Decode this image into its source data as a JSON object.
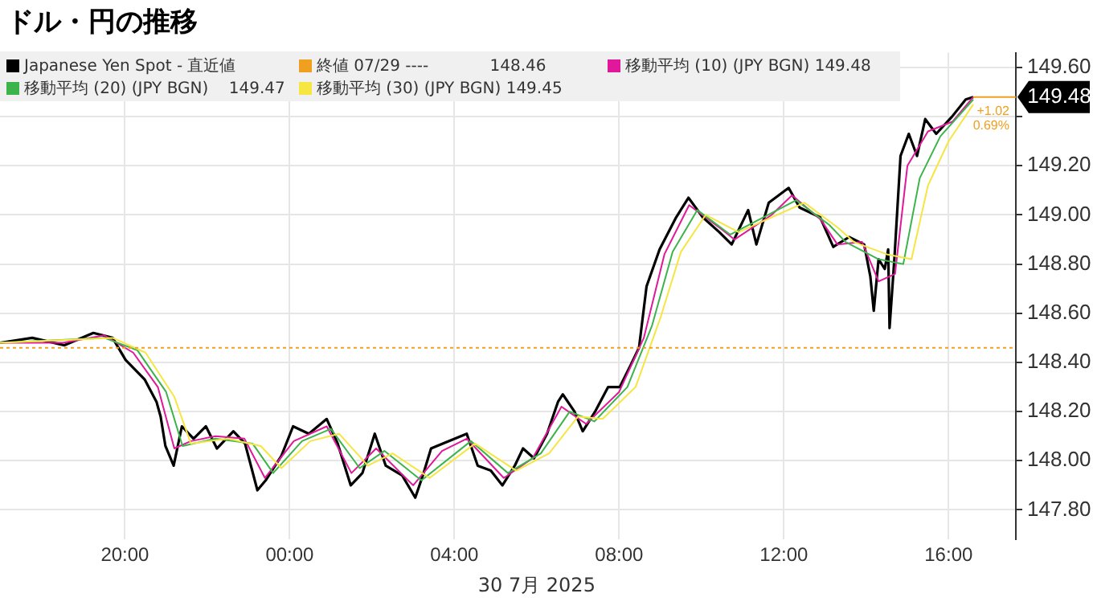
{
  "chart_data": {
    "type": "line",
    "title": "ドル・円の推移",
    "xlabel": "30 7月 2025",
    "xlim": [
      "2025-07-29T16:58",
      "2025-07-30T17:38"
    ],
    "xticks": [
      {
        "value": "2025-07-29T20:00",
        "label": "20:00"
      },
      {
        "value": "2025-07-30T00:00",
        "label": "00:00"
      },
      {
        "value": "2025-07-30T04:00",
        "label": "04:00"
      },
      {
        "value": "2025-07-30T08:00",
        "label": "08:00"
      },
      {
        "value": "2025-07-30T12:00",
        "label": "12:00"
      },
      {
        "value": "2025-07-30T16:00",
        "label": "16:00"
      }
    ],
    "ylim": [
      147.68,
      149.66
    ],
    "yticks": [
      {
        "value": 147.8,
        "label": "147.80"
      },
      {
        "value": 148,
        "label": "148.00"
      },
      {
        "value": 148.2,
        "label": "148.20"
      },
      {
        "value": 148.4,
        "label": "148.40"
      },
      {
        "value": 148.6,
        "label": "148.60"
      },
      {
        "value": 148.8,
        "label": "148.80"
      },
      {
        "value": 149,
        "label": "149.00"
      },
      {
        "value": 149.2,
        "label": "149.20"
      },
      {
        "value": 149.4,
        "label": null
      },
      {
        "value": 149.6,
        "label": "149.60"
      }
    ],
    "grid": true,
    "legend": "top left",
    "marker": "none",
    "series": [
      {
        "name": "移動平均 (30) (JPY BGN) 149.45",
        "color": "#f5e642",
        "x": [
          "2025-07-29T16:58",
          "2025-07-29T19:42",
          "2025-07-29T20:30",
          "2025-07-29T21:12",
          "2025-07-29T21:36",
          "2025-07-29T22:30",
          "2025-07-29T23:18",
          "2025-07-29T23:48",
          "2025-07-30T00:30",
          "2025-07-30T01:12",
          "2025-07-30T01:54",
          "2025-07-30T02:30",
          "2025-07-30T03:24",
          "2025-07-30T04:30",
          "2025-07-30T05:30",
          "2025-07-30T06:18",
          "2025-07-30T07:00",
          "2025-07-30T07:36",
          "2025-07-30T08:24",
          "2025-07-30T09:00",
          "2025-07-30T09:30",
          "2025-07-30T10:06",
          "2025-07-30T10:54",
          "2025-07-30T12:30",
          "2025-07-30T13:18",
          "2025-07-30T13:42",
          "2025-07-30T14:30",
          "2025-07-30T15:06",
          "2025-07-30T15:30",
          "2025-07-30T16:00",
          "2025-07-30T16:36"
        ],
        "values": [
          148.48,
          148.5,
          148.44,
          148.26,
          148.07,
          148.09,
          148.06,
          147.97,
          148.08,
          148.11,
          147.98,
          148.03,
          147.93,
          148.07,
          147.96,
          148.03,
          148.18,
          148.17,
          148.3,
          148.58,
          148.85,
          149.0,
          148.93,
          149.05,
          148.95,
          148.89,
          148.84,
          148.82,
          149.12,
          149.3,
          149.45
        ]
      },
      {
        "name": "移動平均 (20) (JPY BGN)    149.47",
        "color": "#3cb44b",
        "x": [
          "2025-07-29T16:58",
          "2025-07-29T19:30",
          "2025-07-29T20:18",
          "2025-07-29T21:00",
          "2025-07-29T21:24",
          "2025-07-29T22:12",
          "2025-07-29T23:06",
          "2025-07-29T23:36",
          "2025-07-30T00:18",
          "2025-07-30T01:00",
          "2025-07-30T01:42",
          "2025-07-30T02:18",
          "2025-07-30T03:12",
          "2025-07-30T04:24",
          "2025-07-30T05:18",
          "2025-07-30T06:06",
          "2025-07-30T06:48",
          "2025-07-30T07:24",
          "2025-07-30T08:12",
          "2025-07-30T08:48",
          "2025-07-30T09:18",
          "2025-07-30T09:54",
          "2025-07-30T10:42",
          "2025-07-30T12:18",
          "2025-07-30T13:06",
          "2025-07-30T13:30",
          "2025-07-30T14:18",
          "2025-07-30T14:54",
          "2025-07-30T15:18",
          "2025-07-30T15:48",
          "2025-07-30T16:36"
        ],
        "values": [
          148.48,
          148.5,
          148.45,
          148.28,
          148.06,
          148.09,
          148.07,
          147.95,
          148.08,
          148.13,
          147.97,
          148.04,
          147.92,
          148.08,
          147.95,
          148.03,
          148.2,
          148.16,
          148.3,
          148.55,
          148.85,
          149.02,
          148.92,
          149.06,
          148.96,
          148.89,
          148.82,
          148.8,
          149.15,
          149.32,
          149.47
        ]
      },
      {
        "name": "移動平均 (10) (JPY BGN) 149.48",
        "color": "#e0189a",
        "x": [
          "2025-07-29T16:58",
          "2025-07-29T18:30",
          "2025-07-29T19:30",
          "2025-07-29T20:12",
          "2025-07-29T20:48",
          "2025-07-29T21:12",
          "2025-07-29T21:36",
          "2025-07-29T22:12",
          "2025-07-29T22:54",
          "2025-07-29T23:24",
          "2025-07-30T00:06",
          "2025-07-30T00:54",
          "2025-07-30T01:30",
          "2025-07-30T02:06",
          "2025-07-30T03:00",
          "2025-07-30T03:42",
          "2025-07-30T04:18",
          "2025-07-30T05:12",
          "2025-07-30T05:54",
          "2025-07-30T06:36",
          "2025-07-30T07:12",
          "2025-07-30T08:00",
          "2025-07-30T08:36",
          "2025-07-30T09:06",
          "2025-07-30T09:42",
          "2025-07-30T10:30",
          "2025-07-30T10:48",
          "2025-07-30T11:42",
          "2025-07-30T12:12",
          "2025-07-30T12:54",
          "2025-07-30T13:18",
          "2025-07-30T13:54",
          "2025-07-30T14:18",
          "2025-07-30T14:42",
          "2025-07-30T15:00",
          "2025-07-30T15:30",
          "2025-07-30T16:06",
          "2025-07-30T16:36"
        ],
        "values": [
          148.48,
          148.48,
          148.51,
          148.44,
          148.3,
          148.05,
          148.08,
          148.1,
          148.09,
          147.93,
          148.08,
          148.14,
          147.95,
          148.05,
          147.9,
          148.04,
          148.09,
          147.93,
          148.01,
          148.22,
          148.15,
          148.28,
          148.5,
          148.84,
          149.04,
          148.94,
          148.9,
          149.0,
          149.08,
          148.98,
          148.88,
          148.89,
          148.73,
          148.76,
          149.2,
          149.34,
          149.38,
          149.48
        ]
      },
      {
        "name": "Japanese Yen Spot - 直近値",
        "color": "#000000",
        "x": [
          "2025-07-29T16:58",
          "2025-07-29T17:45",
          "2025-07-29T18:32",
          "2025-07-29T19:14",
          "2025-07-29T19:42",
          "2025-07-29T20:01",
          "2025-07-29T20:29",
          "2025-07-29T20:46",
          "2025-07-29T20:52",
          "2025-07-29T20:59",
          "2025-07-29T21:11",
          "2025-07-29T21:23",
          "2025-07-29T21:40",
          "2025-07-29T21:58",
          "2025-07-29T22:14",
          "2025-07-29T22:38",
          "2025-07-29T22:55",
          "2025-07-29T23:13",
          "2025-07-29T23:25",
          "2025-07-29T23:48",
          "2025-07-30T00:05",
          "2025-07-30T00:28",
          "2025-07-30T00:54",
          "2025-07-30T01:10",
          "2025-07-30T01:29",
          "2025-07-30T01:46",
          "2025-07-30T02:04",
          "2025-07-30T02:20",
          "2025-07-30T02:44",
          "2025-07-30T03:03",
          "2025-07-30T03:14",
          "2025-07-30T03:26",
          "2025-07-30T03:43",
          "2025-07-30T04:18",
          "2025-07-30T04:34",
          "2025-07-30T04:53",
          "2025-07-30T05:10",
          "2025-07-30T05:28",
          "2025-07-30T05:40",
          "2025-07-30T05:56",
          "2025-07-30T06:15",
          "2025-07-30T06:31",
          "2025-07-30T06:38",
          "2025-07-30T06:55",
          "2025-07-30T07:07",
          "2025-07-30T07:25",
          "2025-07-30T07:44",
          "2025-07-30T08:01",
          "2025-07-30T08:17",
          "2025-07-30T08:29",
          "2025-07-30T08:40",
          "2025-07-30T08:59",
          "2025-07-30T09:23",
          "2025-07-30T09:41",
          "2025-07-30T10:02",
          "2025-07-30T10:26",
          "2025-07-30T10:44",
          "2025-07-30T11:08",
          "2025-07-30T11:20",
          "2025-07-30T11:38",
          "2025-07-30T12:07",
          "2025-07-30T12:23",
          "2025-07-30T12:53",
          "2025-07-30T13:12",
          "2025-07-30T13:35",
          "2025-07-30T13:57",
          "2025-07-30T14:06",
          "2025-07-30T14:11",
          "2025-07-30T14:18",
          "2025-07-30T14:27",
          "2025-07-30T14:32",
          "2025-07-30T14:34",
          "2025-07-30T14:41",
          "2025-07-30T14:50",
          "2025-07-30T15:02",
          "2025-07-30T15:14",
          "2025-07-30T15:26",
          "2025-07-30T15:42",
          "2025-07-30T16:05",
          "2025-07-30T16:25",
          "2025-07-30T16:36"
        ],
        "values": [
          148.48,
          148.5,
          148.47,
          148.52,
          148.5,
          148.41,
          148.33,
          148.24,
          148.18,
          148.06,
          147.98,
          148.14,
          148.09,
          148.14,
          148.05,
          148.12,
          148.07,
          147.88,
          147.92,
          148.02,
          148.14,
          148.11,
          148.17,
          148.07,
          147.9,
          147.95,
          148.11,
          147.98,
          147.94,
          147.85,
          147.94,
          148.05,
          148.07,
          148.11,
          147.98,
          147.96,
          147.9,
          147.98,
          148.05,
          148.01,
          148.11,
          148.24,
          148.27,
          148.2,
          148.12,
          148.2,
          148.3,
          148.3,
          148.39,
          148.46,
          148.71,
          148.86,
          148.99,
          149.07,
          148.99,
          148.93,
          148.88,
          149.02,
          148.88,
          149.05,
          149.11,
          149.03,
          148.99,
          148.87,
          148.91,
          148.88,
          148.75,
          148.61,
          148.82,
          148.78,
          148.86,
          148.54,
          148.82,
          149.24,
          149.33,
          149.24,
          149.39,
          149.33,
          149.4,
          149.47,
          149.48
        ]
      }
    ],
    "ref_lines": [
      {
        "axis": "y",
        "value": 148.46,
        "label": "終値 07/29 ----            148.46",
        "color": "#f0a020",
        "line_style": "dotted"
      }
    ],
    "annotations": [
      {
        "text": "149.48",
        "x": "2025-07-30T16:36",
        "y": 149.48
      },
      "+1.02",
      "0.69%"
    ]
  }
}
